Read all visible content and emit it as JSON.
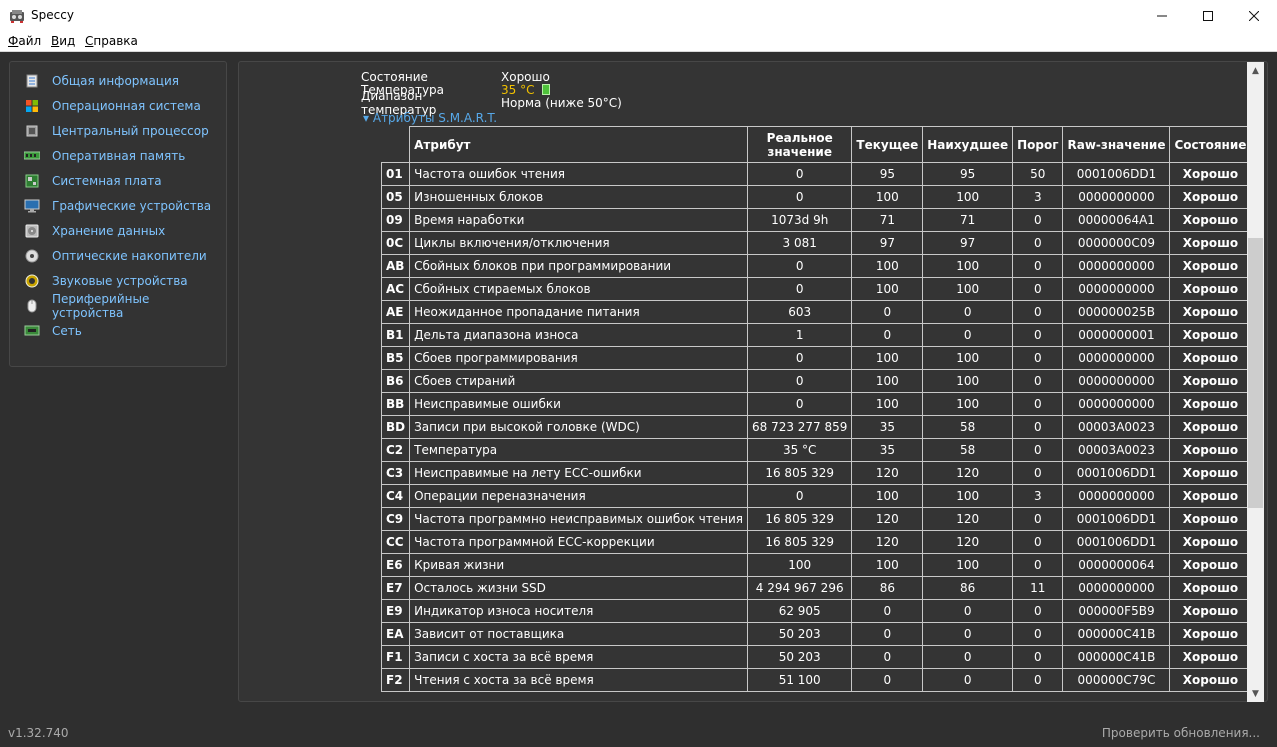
{
  "app": {
    "title": "Speccy",
    "version": "v1.32.740",
    "update_link": "Проверить обновления..."
  },
  "menu": [
    {
      "label_u": "Ф",
      "label_rest": "айл"
    },
    {
      "label_u": "В",
      "label_rest": "ид"
    },
    {
      "label_u": "С",
      "label_rest": "правка"
    }
  ],
  "sidebar": {
    "items": [
      {
        "label": "Общая информация",
        "icon": "summary-icon"
      },
      {
        "label": "Операционная система",
        "icon": "windows-icon"
      },
      {
        "label": "Центральный процессор",
        "icon": "cpu-icon"
      },
      {
        "label": "Оперативная память",
        "icon": "ram-icon"
      },
      {
        "label": "Системная плата",
        "icon": "motherboard-icon"
      },
      {
        "label": "Графические устройства",
        "icon": "monitor-icon"
      },
      {
        "label": "Хранение данных",
        "icon": "hdd-icon"
      },
      {
        "label": "Оптические накопители",
        "icon": "disc-icon"
      },
      {
        "label": "Звуковые устройства",
        "icon": "speaker-icon"
      },
      {
        "label": "Периферийные устройства",
        "icon": "mouse-icon"
      },
      {
        "label": "Сеть",
        "icon": "network-icon"
      }
    ]
  },
  "main": {
    "status_label": "Состояние",
    "status_value": "Хорошо",
    "temp_label": "Температура",
    "temp_value": "35 °C",
    "range_label": "Диапазон температур",
    "range_value": "Норма (ниже 50°C)",
    "smart_toggle": "Атрибуты S.M.A.R.T.",
    "table_headers": {
      "attr": "Атрибут",
      "real_1": "Реальное",
      "real_2": "значение",
      "cur": "Текущее",
      "worst": "Наихудшее",
      "thr": "Порог",
      "raw": "Raw-значение",
      "state": "Состояние"
    },
    "rows": [
      [
        "01",
        "Частота ошибок чтения",
        "0",
        "95",
        "95",
        "50",
        "0001006DD1",
        "Хорошо"
      ],
      [
        "05",
        "Изношенных блоков",
        "0",
        "100",
        "100",
        "3",
        "0000000000",
        "Хорошо"
      ],
      [
        "09",
        "Время наработки",
        "1073d 9h",
        "71",
        "71",
        "0",
        "00000064A1",
        "Хорошо"
      ],
      [
        "0C",
        "Циклы включения/отключения",
        "3 081",
        "97",
        "97",
        "0",
        "0000000C09",
        "Хорошо"
      ],
      [
        "AB",
        "Сбойных блоков при программировании",
        "0",
        "100",
        "100",
        "0",
        "0000000000",
        "Хорошо"
      ],
      [
        "AC",
        "Сбойных стираемых блоков",
        "0",
        "100",
        "100",
        "0",
        "0000000000",
        "Хорошо"
      ],
      [
        "AE",
        "Неожиданное пропадание питания",
        "603",
        "0",
        "0",
        "0",
        "000000025B",
        "Хорошо"
      ],
      [
        "B1",
        "Дельта диапазона износа",
        "1",
        "0",
        "0",
        "0",
        "0000000001",
        "Хорошо"
      ],
      [
        "B5",
        "Сбоев программирования",
        "0",
        "100",
        "100",
        "0",
        "0000000000",
        "Хорошо"
      ],
      [
        "B6",
        "Сбоев стираний",
        "0",
        "100",
        "100",
        "0",
        "0000000000",
        "Хорошо"
      ],
      [
        "BB",
        "Неисправимые ошибки",
        "0",
        "100",
        "100",
        "0",
        "0000000000",
        "Хорошо"
      ],
      [
        "BD",
        "Записи при высокой головке (WDC)",
        "68 723 277 859",
        "35",
        "58",
        "0",
        "00003A0023",
        "Хорошо"
      ],
      [
        "C2",
        "Температура",
        "35 °C",
        "35",
        "58",
        "0",
        "00003A0023",
        "Хорошо"
      ],
      [
        "C3",
        "Неисправимые на лету ECC-ошибки",
        "16 805 329",
        "120",
        "120",
        "0",
        "0001006DD1",
        "Хорошо"
      ],
      [
        "C4",
        "Операции переназначения",
        "0",
        "100",
        "100",
        "3",
        "0000000000",
        "Хорошо"
      ],
      [
        "C9",
        "Частота программно неисправимых ошибок чтения",
        "16 805 329",
        "120",
        "120",
        "0",
        "0001006DD1",
        "Хорошо"
      ],
      [
        "CC",
        "Частота программной ECC-коррекции",
        "16 805 329",
        "120",
        "120",
        "0",
        "0001006DD1",
        "Хорошо"
      ],
      [
        "E6",
        "Кривая жизни",
        "100",
        "100",
        "100",
        "0",
        "0000000064",
        "Хорошо"
      ],
      [
        "E7",
        "Осталось жизни SSD",
        "4 294 967 296",
        "86",
        "86",
        "11",
        "0000000000",
        "Хорошо"
      ],
      [
        "E9",
        "Индикатор износа носителя",
        "62 905",
        "0",
        "0",
        "0",
        "000000F5B9",
        "Хорошо"
      ],
      [
        "EA",
        "Зависит от поставщика",
        "50 203",
        "0",
        "0",
        "0",
        "000000C41B",
        "Хорошо"
      ],
      [
        "F1",
        "Записи с хоста за всё время",
        "50 203",
        "0",
        "0",
        "0",
        "000000C41B",
        "Хорошо"
      ],
      [
        "F2",
        "Чтения с хоста за всё время",
        "51 100",
        "0",
        "0",
        "0",
        "000000C79C",
        "Хорошо"
      ]
    ]
  },
  "colors": {
    "link": "#7fc4ff",
    "ok": "#32d11b",
    "temp": "#f0c000",
    "bg": "#2f2f2f"
  }
}
